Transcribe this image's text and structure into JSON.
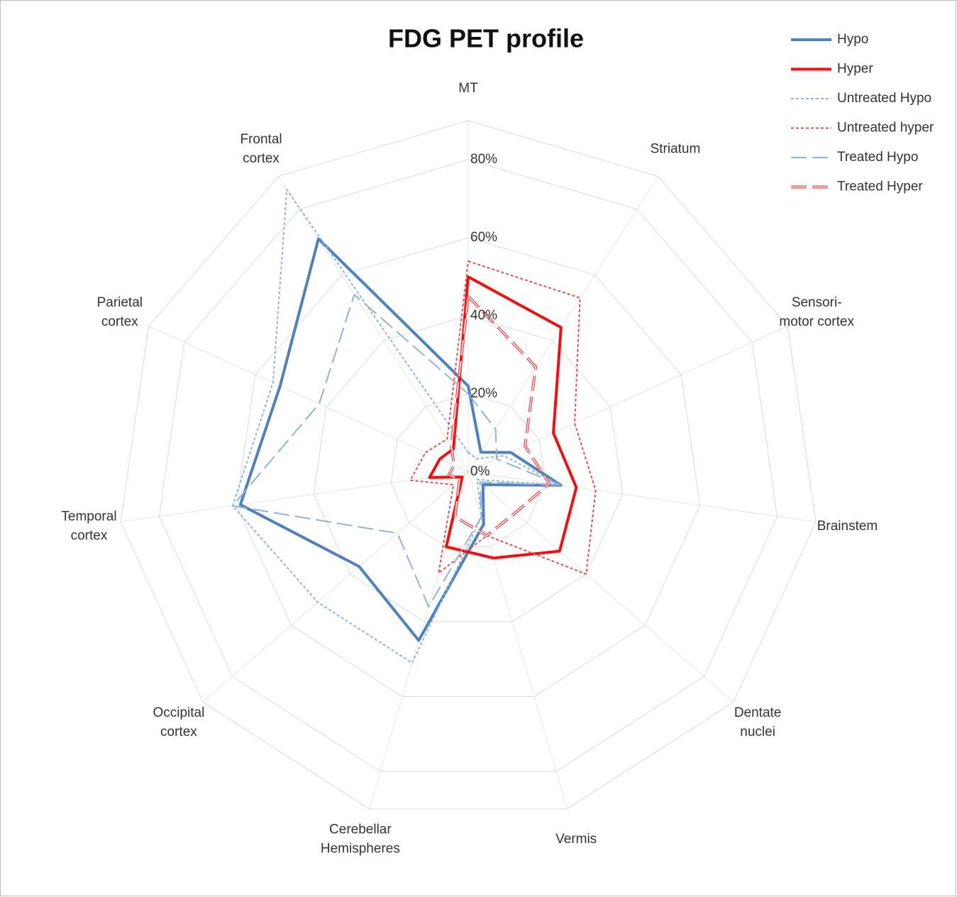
{
  "chart_data": {
    "type": "radar",
    "title": "FDG PET profile",
    "categories": [
      "MT",
      "Striatum",
      "Sensori-\nmotor cortex",
      "Brainstem",
      "Dentate\nnuclei",
      "Vermis",
      "Cerebellar\nHemispheres",
      "Occipital\ncortex",
      "Temporal\ncortex",
      "Parietal\ncortex",
      "Frontal\ncortex"
    ],
    "ylim": [
      0,
      90
    ],
    "yticks": [
      {
        "value": 0,
        "label": "0%"
      },
      {
        "value": 20,
        "label": "20%"
      },
      {
        "value": 40,
        "label": "40%"
      },
      {
        "value": 60,
        "label": "60%"
      },
      {
        "value": 80,
        "label": "80%"
      }
    ],
    "grid": true,
    "legend": "top-right",
    "series": [
      {
        "name": "Hypo",
        "color": "#4f81bd",
        "dash": "solid",
        "values": [
          22,
          6,
          12,
          24,
          5,
          14,
          45,
          37,
          59,
          53,
          71
        ]
      },
      {
        "name": "Hyper",
        "color": "#ee1111",
        "dash": "solid",
        "values": [
          50,
          44,
          24,
          28,
          31,
          23,
          20,
          2,
          10,
          8,
          7
        ]
      },
      {
        "name": "Untreated Hypo",
        "color": "#8fb3dc",
        "dash": "dotted",
        "values": [
          5,
          4,
          10,
          24,
          3,
          12,
          51,
          51,
          61,
          55,
          86
        ]
      },
      {
        "name": "Untreated hyper",
        "color": "#e84c4c",
        "dash": "dotted",
        "values": [
          54,
          53,
          30,
          33,
          40,
          17,
          27,
          5,
          15,
          12,
          10
        ]
      },
      {
        "name": "Treated Hypo",
        "color": "#8fb3dc",
        "dash": "dashed",
        "values": [
          20,
          13,
          8,
          24,
          4,
          12,
          36,
          24,
          61,
          42,
          54
        ]
      },
      {
        "name": "Treated Hyper",
        "color": "#e84c4c",
        "dash": "double",
        "values": [
          45,
          32,
          16,
          21,
          16,
          17,
          12,
          3,
          5,
          4,
          8
        ]
      }
    ]
  }
}
